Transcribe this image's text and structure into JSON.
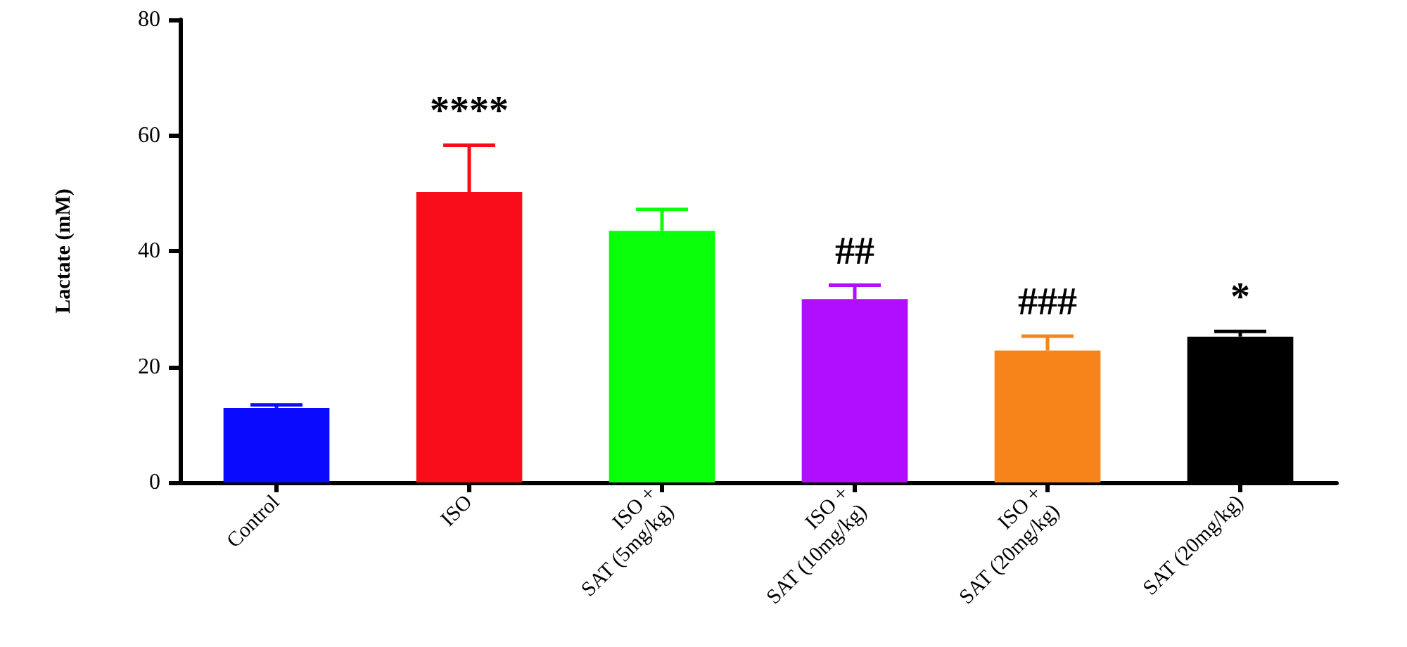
{
  "chart_data": {
    "type": "bar",
    "ylabel": "Lactate (mM)",
    "categories": [
      "Control",
      "ISO",
      "ISO +\nSAT (5mg/kg)",
      "ISO +\nSAT (10mg/kg)",
      "ISO +\nSAT (20mg/kg)",
      "SAT (20mg/kg)"
    ],
    "values": [
      12.9,
      50.2,
      43.5,
      31.7,
      22.8,
      25.2
    ],
    "errors": [
      [
        12.9,
        13.4
      ],
      [
        50.2,
        58.3
      ],
      [
        43.5,
        47.2
      ],
      [
        31.7,
        34.1
      ],
      [
        22.8,
        25.3
      ],
      [
        25.2,
        26.1
      ]
    ],
    "colors": [
      "#0a0aff",
      "#fa0d1a",
      "#0aff0a",
      "#b10dff",
      "#f6841a",
      "#000000"
    ],
    "ylim": [
      0,
      80
    ],
    "yticks": [
      0,
      20,
      40,
      60,
      80
    ],
    "annotations": [
      {
        "text": "****",
        "x": "ISO",
        "y": 58.3
      },
      {
        "text": "##",
        "x": "ISO +\nSAT (10mg/kg)",
        "y": 34.1
      },
      {
        "text": "###",
        "x": "ISO +\nSAT (20mg/kg)",
        "y": 25.3
      },
      {
        "text": "*",
        "x": "SAT (20mg/kg)",
        "y": 26.1
      }
    ]
  }
}
